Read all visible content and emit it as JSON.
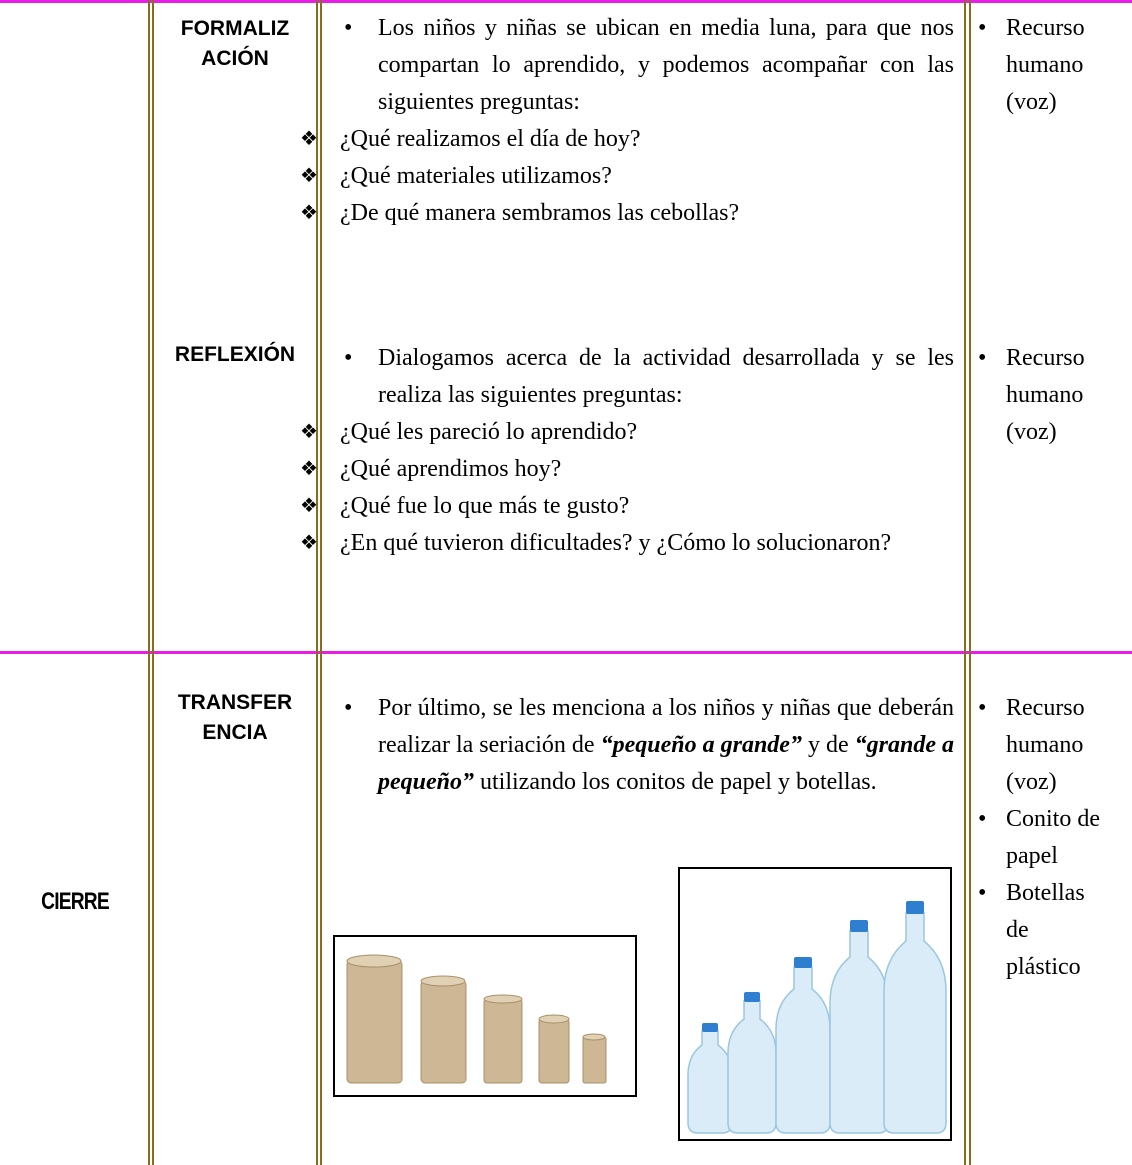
{
  "table": {
    "rows": [
      {
        "phases": [
          {
            "label_lines": [
              "FORMALIZ",
              "ACIÓN"
            ],
            "activity": {
              "text": "Los niños y niñas se ubican en media luna, para que nos compartan lo aprendido, y podemos acompañar con las siguientes preguntas:",
              "questions": [
                "¿Qué realizamos el día de hoy?",
                "¿Qué materiales utilizamos?",
                "¿De qué manera sembramos las cebollas?"
              ]
            },
            "resources": [
              "Recurso humano (voz)"
            ]
          },
          {
            "label_lines": [
              "REFLEXIÓN"
            ],
            "activity": {
              "text": "Dialogamos acerca de la actividad desarrollada y se les realiza las siguientes preguntas:",
              "questions": [
                "¿Qué les pareció lo aprendido?",
                "¿Qué aprendimos hoy?",
                "¿Qué fue lo que más te gusto?",
                "¿En qué tuvieron dificultades? y ¿Cómo lo solucionaron?"
              ]
            },
            "resources": [
              "Recurso humano (voz)"
            ]
          }
        ]
      },
      {
        "stage": "CIERRE",
        "phases": [
          {
            "label_lines": [
              "TRANSFER",
              "ENCIA"
            ],
            "activity": {
              "text_parts": [
                "Por último, se les menciona a los niños y niñas que deberán realizar la seriación de ",
                "“pequeño a grande”",
                " y de ",
                "“grande a pequeño”",
                " utilizando los conitos de papel y botellas."
              ]
            },
            "resources": [
              "Recurso humano (voz)",
              "Conito de papel",
              "Botellas de plástico"
            ]
          }
        ]
      }
    ]
  }
}
